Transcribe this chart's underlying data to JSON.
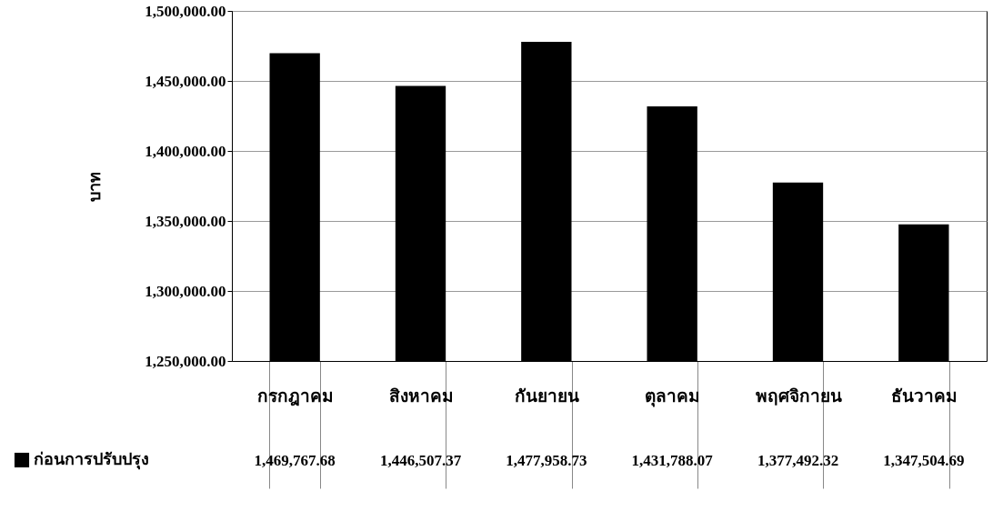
{
  "chart_data": {
    "type": "bar",
    "ylabel": "บาท",
    "categories": [
      "กรกฎาคม",
      "สิงหาคม",
      "กันยายน",
      "ตุลาคม",
      "พฤศจิกายน",
      "ธันวาคม"
    ],
    "series": [
      {
        "name": "ก่อนการปรับปรุง",
        "color": "#000000",
        "values": [
          1469767.68,
          1446507.37,
          1477958.73,
          1431788.07,
          1377492.32,
          1347504.69
        ],
        "value_labels": [
          "1,469,767.68",
          "1,446,507.37",
          "1,477,958.73",
          "1,431,788.07",
          "1,377,492.32",
          "1,347,504.69"
        ]
      }
    ],
    "ylim": [
      1250000,
      1500000
    ],
    "yticks": [
      {
        "value": 1250000,
        "label": "1,250,000.00"
      },
      {
        "value": 1300000,
        "label": "1,300,000.00"
      },
      {
        "value": 1350000,
        "label": "1,350,000.00"
      },
      {
        "value": 1400000,
        "label": "1,400,000.00"
      },
      {
        "value": 1450000,
        "label": "1,450,000.00"
      },
      {
        "value": 1500000,
        "label": "1,500,000.00"
      }
    ],
    "grid": "y",
    "legend": "bottom left"
  }
}
